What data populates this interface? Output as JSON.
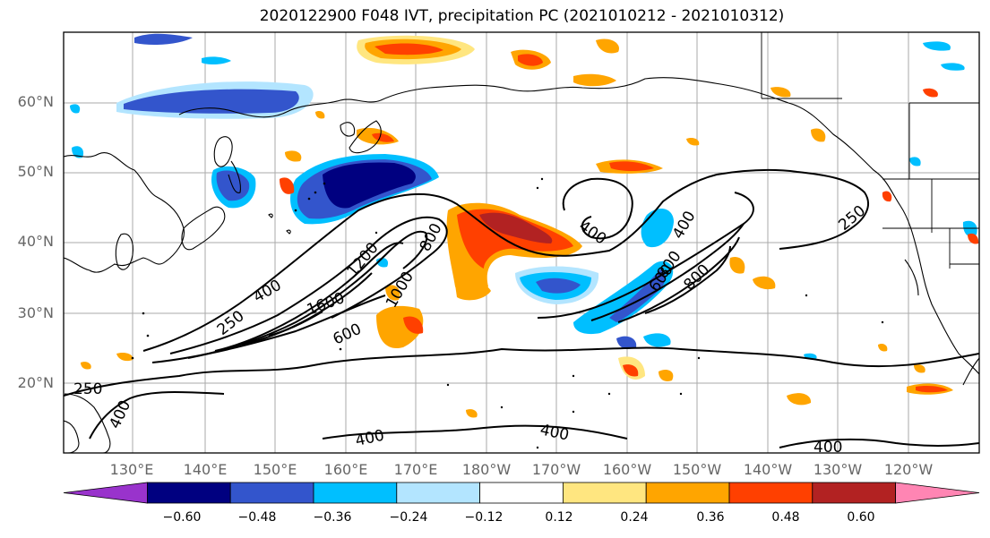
{
  "title": "2020122900 F048 IVT, precipitation PC (2021010212 - 2021010312)",
  "lat_labels": [
    "60°N",
    "50°N",
    "40°N",
    "30°N",
    "20°N"
  ],
  "lon_labels": [
    "130°E",
    "140°E",
    "150°E",
    "160°E",
    "170°E",
    "180°W",
    "170°W",
    "160°W",
    "150°W",
    "140°W",
    "130°W",
    "120°W"
  ],
  "contour_labels": [
    "250",
    "400",
    "600",
    "800",
    "1000",
    "1200",
    "1600",
    "400",
    "400",
    "800",
    "600",
    "800",
    "250",
    "400",
    "250",
    "400",
    "400",
    "400"
  ],
  "colorbar": {
    "colors": [
      "#9933cc",
      "#000080",
      "#3355cc",
      "#00bfff",
      "#b3e5ff",
      "#ffffff",
      "#ffe680",
      "#ffa500",
      "#ff4000",
      "#b22222",
      "#ff85b3"
    ],
    "tick_labels": [
      "−0.60",
      "−0.48",
      "−0.36",
      "−0.24",
      "−0.12",
      "0.12",
      "0.24",
      "0.36",
      "0.48",
      "0.60"
    ]
  }
}
